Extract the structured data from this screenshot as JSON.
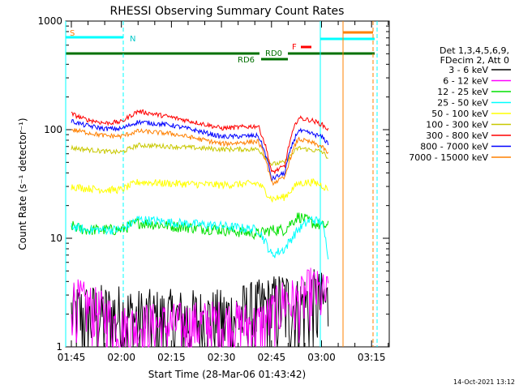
{
  "chart_data": {
    "type": "line",
    "title": "RHESSI Observing Summary Count Rates",
    "xlabel": "Start Time (28-Mar-06 01:43:42)",
    "ylabel": "Count Rate (s⁻¹ detector⁻¹)",
    "yscale": "log",
    "ylim": [
      1,
      1000
    ],
    "xlim_minutes": [
      -1.7,
      95.3
    ],
    "x_tick_labels": [
      "01:45",
      "02:00",
      "02:15",
      "02:30",
      "02:45",
      "03:00",
      "03:15"
    ],
    "x_tick_minutes": [
      0,
      15,
      30,
      45,
      60,
      75,
      90
    ],
    "y_tick_labels": [
      "1",
      "10",
      "100",
      "1000"
    ],
    "y_tick_values": [
      1,
      10,
      100,
      1000
    ],
    "legend_header": [
      "Det 1,3,4,5,6,9,",
      "FDecim 2, Att 0"
    ],
    "legend_position": "right",
    "series": [
      {
        "name": "3 - 6 keV",
        "color": "#000000",
        "x": [
          0,
          15,
          20,
          30,
          45,
          56,
          60,
          64,
          68,
          72,
          75,
          77
        ],
        "y": [
          2.0,
          2.0,
          1.8,
          1.8,
          1.8,
          2.2,
          2.4,
          2.7,
          2.3,
          2.8,
          2.6,
          2.5
        ]
      },
      {
        "name": "6 - 12 keV",
        "color": "#ff00ff",
        "x": [
          0,
          4,
          10,
          15,
          20,
          30,
          45,
          56,
          60,
          64,
          68,
          72,
          75,
          77
        ],
        "y": [
          2.8,
          2.5,
          2.0,
          1.5,
          1.6,
          1.6,
          1.7,
          1.6,
          2.0,
          2.8,
          2.6,
          3.5,
          3.0,
          3.0
        ]
      },
      {
        "name": "12 - 25 keV",
        "color": "#00e000",
        "x": [
          0,
          4,
          10,
          15,
          20,
          30,
          45,
          56,
          60,
          64,
          68,
          72,
          75,
          77
        ],
        "y": [
          13,
          12,
          12,
          12,
          14,
          13,
          12,
          11,
          12,
          12,
          16,
          14,
          13,
          13
        ]
      },
      {
        "name": "25 - 50 keV",
        "color": "#00ffff",
        "x": [
          0,
          4,
          10,
          15,
          20,
          30,
          45,
          56,
          60,
          64,
          68,
          72,
          75,
          77
        ],
        "y": [
          13,
          12,
          12,
          12,
          15,
          14,
          13,
          12,
          7,
          8,
          12,
          15,
          14,
          7
        ]
      },
      {
        "name": "50 - 100 keV",
        "color": "#ffff00",
        "x": [
          0,
          4,
          10,
          15,
          20,
          30,
          45,
          56,
          60,
          64,
          68,
          72,
          75,
          77
        ],
        "y": [
          30,
          29,
          28,
          28,
          33,
          32,
          31,
          32,
          23,
          24,
          32,
          33,
          31,
          28
        ]
      },
      {
        "name": "100 - 300 keV",
        "color": "#c8c800",
        "x": [
          0,
          4,
          10,
          15,
          20,
          30,
          45,
          56,
          60,
          64,
          68,
          72,
          75,
          77
        ],
        "y": [
          68,
          66,
          63,
          62,
          72,
          70,
          66,
          66,
          48,
          50,
          68,
          65,
          63,
          55
        ]
      },
      {
        "name": "300 - 800 keV",
        "color": "#ff0000",
        "x": [
          0,
          4,
          10,
          15,
          20,
          30,
          45,
          56,
          60,
          64,
          68,
          72,
          75,
          77
        ],
        "y": [
          140,
          125,
          115,
          118,
          148,
          130,
          103,
          108,
          40,
          46,
          128,
          122,
          112,
          100
        ]
      },
      {
        "name": "800 - 7000 keV",
        "color": "#0000ff",
        "x": [
          0,
          4,
          10,
          15,
          20,
          30,
          45,
          56,
          60,
          64,
          68,
          72,
          75,
          77
        ],
        "y": [
          120,
          110,
          102,
          102,
          118,
          110,
          86,
          88,
          35,
          40,
          98,
          92,
          86,
          75
        ]
      },
      {
        "name": "7000 - 15000 keV",
        "color": "#ff8000",
        "x": [
          0,
          4,
          10,
          15,
          20,
          30,
          45,
          56,
          60,
          64,
          68,
          72,
          75,
          77
        ],
        "y": [
          100,
          95,
          88,
          87,
          97,
          92,
          74,
          78,
          32,
          36,
          82,
          76,
          70,
          60
        ]
      }
    ],
    "annotations": [
      "S",
      "N",
      "F",
      "RD0",
      "RD6"
    ],
    "corner_timestamp": "14-Oct-2021 13:12"
  }
}
